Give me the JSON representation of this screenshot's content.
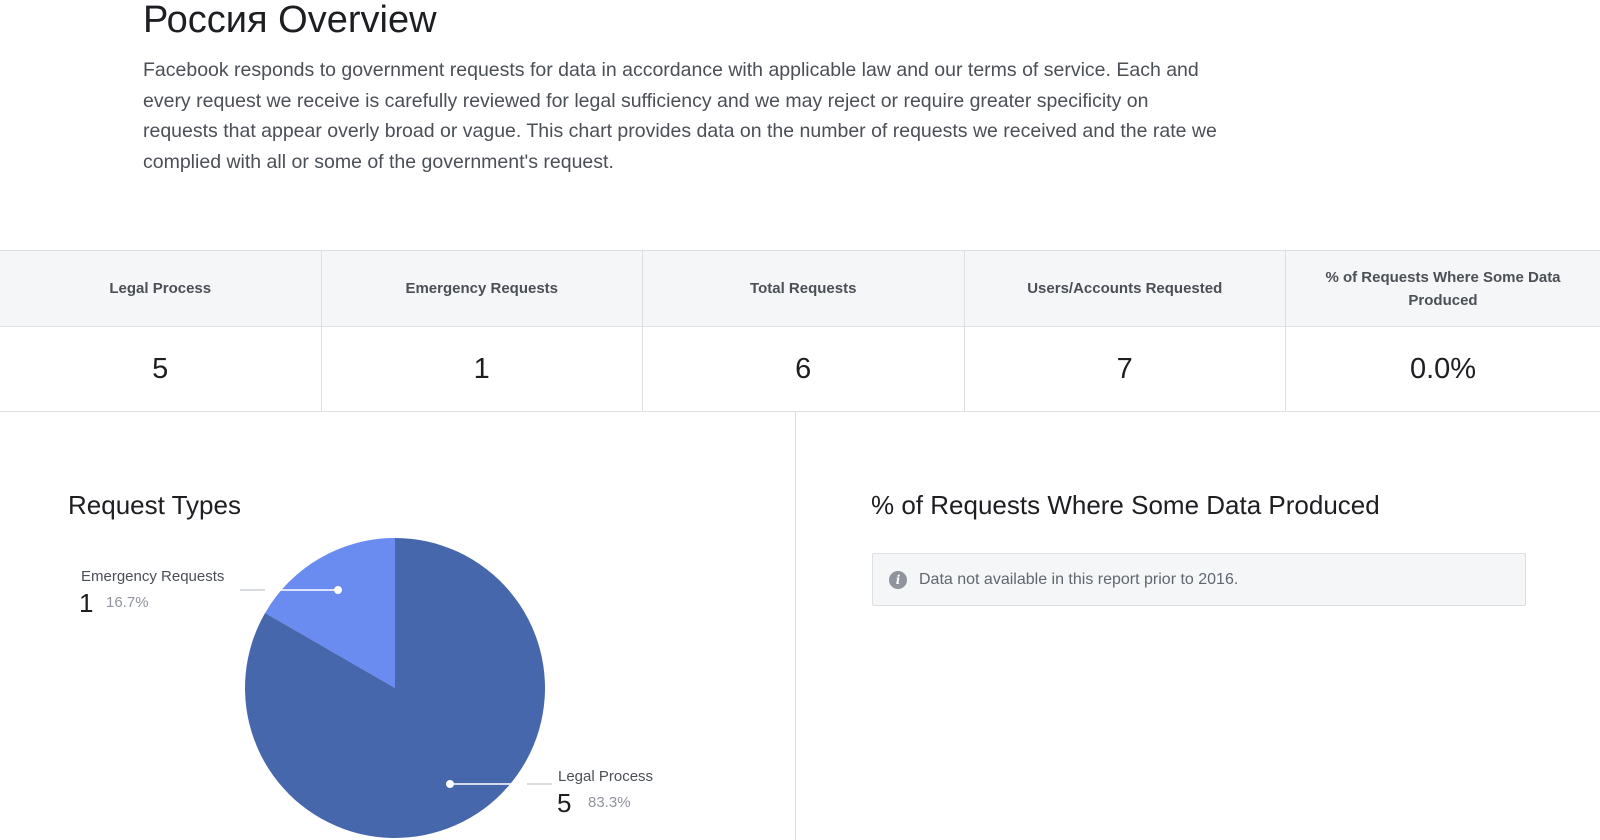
{
  "header": {
    "title": "Россия Overview",
    "description": "Facebook responds to government requests for data in accordance with applicable law and our terms of service. Each and every request we receive is carefully reviewed for legal sufficiency and we may reject or require greater specificity on requests that appear overly broad or vague. This chart provides data on the number of requests we received and the rate we complied with all or some of the government's request."
  },
  "summary": {
    "columns": [
      {
        "label": "Legal Process",
        "value": "5"
      },
      {
        "label": "Emergency Requests",
        "value": "1"
      },
      {
        "label": "Total Requests",
        "value": "6"
      },
      {
        "label": "Users/Accounts Requested",
        "value": "7"
      },
      {
        "label": "% of Requests Where Some Data Produced",
        "value": "0.0%"
      }
    ]
  },
  "request_types": {
    "title": "Request Types",
    "slices": [
      {
        "name": "Emergency Requests",
        "count": "1",
        "pct": "16.7%",
        "color": "#6a8cf0"
      },
      {
        "name": "Legal Process",
        "count": "5",
        "pct": "83.3%",
        "color": "#4767ad"
      }
    ]
  },
  "data_produced": {
    "title": "% of Requests Where Some Data Produced",
    "notice": "Data not available in this report prior to 2016.",
    "icon": "info-icon"
  },
  "chart_data": {
    "type": "pie",
    "title": "Request Types",
    "categories": [
      "Emergency Requests",
      "Legal Process"
    ],
    "values": [
      1,
      5
    ],
    "percentages": [
      16.7,
      83.3
    ]
  }
}
